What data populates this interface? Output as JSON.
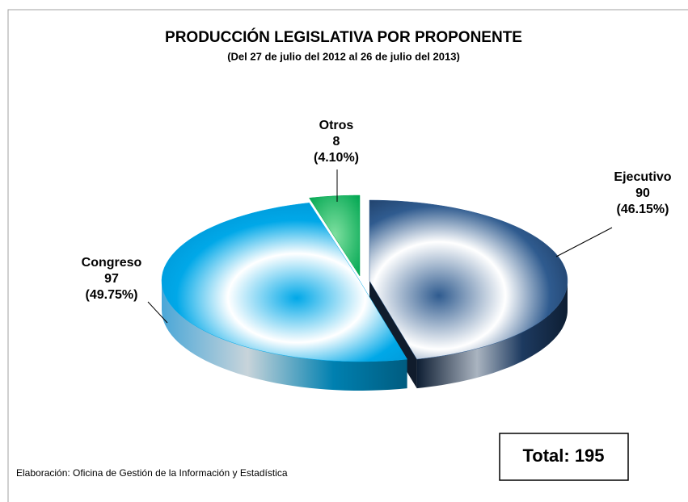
{
  "chart_data": {
    "type": "pie",
    "title": "PRODUCCIÓN LEGISLATIVA POR PROPONENTE",
    "subtitle": "(Del 27 de julio del 2012 al 26 de julio del 2013)",
    "categories": [
      "Ejecutivo",
      "Congreso",
      "Otros"
    ],
    "values": [
      90,
      97,
      8
    ],
    "percent_labels": [
      "(46.15%)",
      "(49.75%)",
      "(4.10%)"
    ],
    "colors": [
      "#2f5b8f",
      "#00a8e8",
      "#00a651"
    ],
    "total_label": "Total: 195",
    "source": "Elaboración: Oficina de Gestión de la Información y Estadística"
  }
}
